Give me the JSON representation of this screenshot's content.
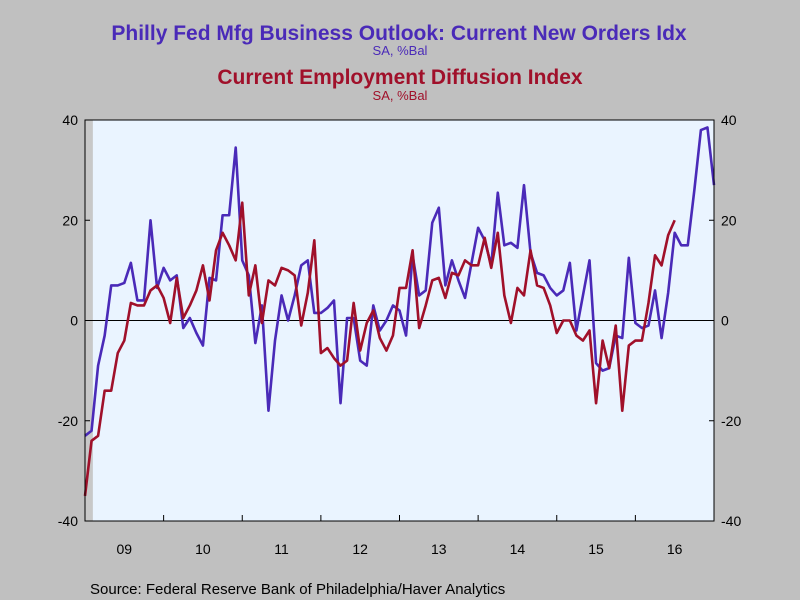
{
  "chart_data": {
    "type": "line",
    "title": "Philly Fed Mfg Business Outlook: Current New Orders Idx",
    "title_sub": "SA, %Bal",
    "title2": "Current Employment Diffusion Index",
    "title2_sub": "SA, %Bal",
    "source": "Source:  Federal Reserve Bank of Philadelphia/Haver Analytics",
    "ylim": [
      -40,
      40
    ],
    "yticks": [
      -40,
      -20,
      0,
      20,
      40
    ],
    "ytick_labels": [
      "-40",
      "-20",
      "0",
      "20",
      "40"
    ],
    "xlim": [
      2009.0,
      2017.0
    ],
    "x_tick_labels": [
      {
        "x": 2009.5,
        "label": "09"
      },
      {
        "x": 2010.5,
        "label": "10"
      },
      {
        "x": 2011.5,
        "label": "11"
      },
      {
        "x": 2012.5,
        "label": "12"
      },
      {
        "x": 2013.5,
        "label": "13"
      },
      {
        "x": 2014.5,
        "label": "14"
      },
      {
        "x": 2015.5,
        "label": "15"
      },
      {
        "x": 2016.5,
        "label": "16"
      }
    ],
    "start": "2009-01",
    "frequency": "monthly",
    "recession_shading": {
      "x_start": 2009.0,
      "x_end": 2009.5,
      "color": "#c8c8c8"
    },
    "plot_background": "#eaf4ff",
    "series": [
      {
        "color": "#4a2ab8",
        "values": [
          -23,
          -22,
          -9,
          -3,
          7,
          7,
          7.5,
          11.5,
          4,
          4,
          20,
          6.5,
          10.5,
          8,
          9,
          -1.5,
          0.5,
          -2.5,
          -5,
          8.5,
          8,
          21,
          21,
          34.5,
          12,
          9,
          -4.5,
          3,
          -18,
          -4,
          5,
          0,
          5,
          11,
          12,
          1.5,
          1.5,
          2.5,
          4,
          -16.5,
          0.5,
          0.5,
          -8,
          -9,
          3,
          -2,
          0,
          3,
          2,
          -3,
          13,
          5,
          6,
          19.5,
          22.5,
          7,
          12,
          8,
          4.5,
          11.5,
          18.5,
          16,
          11,
          25.5,
          15,
          15.5,
          14.5,
          27,
          13.5,
          9.5,
          9,
          6.5,
          5,
          6,
          11.5,
          -2,
          5,
          12,
          -8.5,
          -10,
          -9.5,
          -3,
          -3.5,
          12.5,
          -0.5,
          -1.5,
          -1,
          6,
          -3.5,
          5.5,
          17.5,
          15,
          15,
          26,
          38,
          38.5,
          27
        ]
      },
      {
        "color": "#a0102a",
        "values": [
          -35,
          -24,
          -23,
          -14,
          -14,
          -6.5,
          -4,
          3.5,
          3,
          3,
          6,
          7,
          4.5,
          -0.5,
          8.5,
          0.5,
          3,
          6,
          11,
          4,
          14,
          17.5,
          15,
          12,
          23.5,
          5,
          11,
          -0.5,
          8,
          7,
          10.5,
          10,
          9,
          -1,
          5.5,
          16,
          -6.5,
          -5.5,
          -7.5,
          -9,
          -8,
          3.5,
          -6,
          -0.5,
          2,
          -3.5,
          -6,
          -3,
          6.5,
          6.5,
          14,
          -1.5,
          3,
          8,
          8.5,
          4.5,
          9.5,
          9,
          12,
          11,
          11,
          16.5,
          10.5,
          17.5,
          5,
          -0.5,
          6.5,
          5,
          14,
          7,
          6.5,
          3,
          -2.5,
          0,
          0,
          -3,
          -4,
          -2,
          -16.5,
          -4,
          -9.5,
          -1,
          -18,
          -5,
          -4,
          -4,
          3.5,
          13,
          11,
          17,
          20
        ]
      }
    ]
  }
}
